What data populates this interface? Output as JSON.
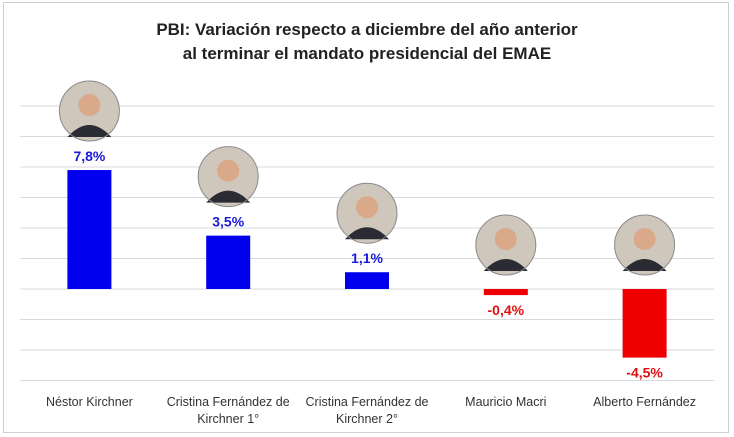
{
  "chart_data": {
    "type": "bar",
    "title_lines": [
      "PBI: Variación respecto a diciembre del año anterior",
      "al terminar el mandato presidencial del EMAE"
    ],
    "categories": [
      [
        "Néstor Kirchner"
      ],
      [
        "Cristina Fernández de",
        "Kirchner 1°"
      ],
      [
        "Cristina Fernández de",
        "Kirchner 2°"
      ],
      [
        "Mauricio Macri"
      ],
      [
        "Alberto Fernández"
      ]
    ],
    "values": [
      7.8,
      3.5,
      1.1,
      -0.4,
      -4.5
    ],
    "data_labels": [
      "7,8%",
      "3,5%",
      "1,1%",
      "-0,4%",
      "-4,5%"
    ],
    "portraits": [
      "portrait-nestor-kirchner",
      "portrait-cristina-fernandez-1",
      "portrait-cristina-fernandez-2",
      "portrait-mauricio-macri",
      "portrait-alberto-fernandez"
    ],
    "ylim": [
      -6,
      12
    ],
    "grid": true,
    "colors": {
      "positive": "#0000ee",
      "negative": "#ee0000",
      "label_positive": "#1a1adb",
      "label_negative": "#e01010",
      "grid": "#d9d9d9"
    }
  }
}
